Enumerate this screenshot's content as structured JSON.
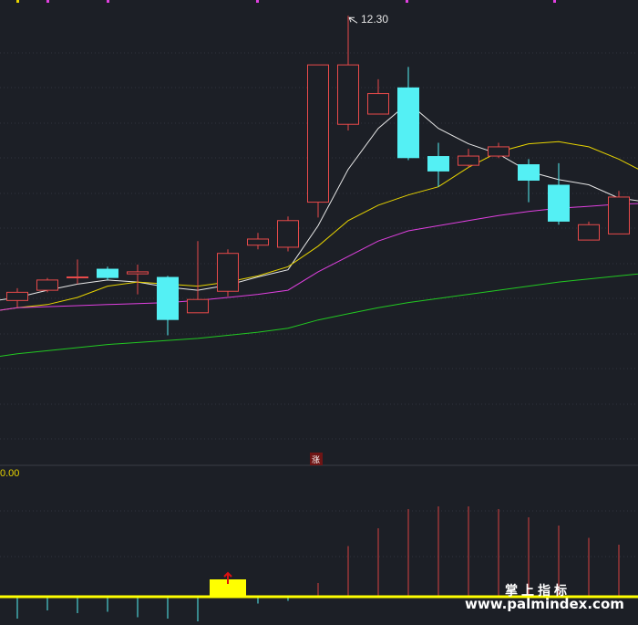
{
  "chart_data": {
    "type": "candlestick",
    "title": "",
    "price_axis": {
      "ylim": [
        8.0,
        12.4
      ]
    },
    "candles": [
      {
        "open": 9.52,
        "close": 9.6,
        "high": 9.64,
        "low": 9.45
      },
      {
        "open": 9.62,
        "close": 9.72,
        "high": 9.74,
        "low": 9.6
      },
      {
        "open": 9.75,
        "close": 9.75,
        "high": 9.92,
        "low": 9.68
      },
      {
        "open": 9.83,
        "close": 9.74,
        "high": 9.85,
        "low": 9.72
      },
      {
        "open": 9.78,
        "close": 9.8,
        "high": 9.87,
        "low": 9.58
      },
      {
        "open": 9.75,
        "close": 9.33,
        "high": 9.76,
        "low": 9.18
      },
      {
        "open": 9.4,
        "close": 9.53,
        "high": 10.1,
        "low": 9.4
      },
      {
        "open": 9.61,
        "close": 9.98,
        "high": 10.02,
        "low": 9.56
      },
      {
        "open": 10.06,
        "close": 10.12,
        "high": 10.18,
        "low": 10.02
      },
      {
        "open": 10.04,
        "close": 10.3,
        "high": 10.34,
        "low": 10.0
      },
      {
        "open": 10.48,
        "close": 11.82,
        "high": 11.82,
        "low": 10.33
      },
      {
        "open": 11.24,
        "close": 11.82,
        "high": 12.3,
        "low": 11.18
      },
      {
        "open": 11.34,
        "close": 11.54,
        "high": 11.68,
        "low": 11.34
      },
      {
        "open": 11.6,
        "close": 10.91,
        "high": 11.8,
        "low": 10.89
      },
      {
        "open": 10.93,
        "close": 10.78,
        "high": 11.06,
        "low": 10.63
      },
      {
        "open": 10.84,
        "close": 10.93,
        "high": 11.0,
        "low": 10.82
      },
      {
        "open": 10.93,
        "close": 11.02,
        "high": 11.06,
        "low": 10.91
      },
      {
        "open": 10.85,
        "close": 10.69,
        "high": 10.9,
        "low": 10.48
      },
      {
        "open": 10.65,
        "close": 10.29,
        "high": 10.86,
        "low": 10.26
      },
      {
        "open": 10.11,
        "close": 10.26,
        "high": 10.29,
        "low": 10.11
      },
      {
        "open": 10.17,
        "close": 10.53,
        "high": 10.59,
        "low": 10.17
      },
      {
        "open": 10.61,
        "close": 10.03,
        "high": 10.61,
        "low": 9.93
      }
    ],
    "moving_averages": [
      {
        "color": "#e8e8e8",
        "values": [
          9.55,
          9.62,
          9.68,
          9.72,
          9.7,
          9.65,
          9.62,
          9.67,
          9.75,
          9.82,
          10.25,
          10.8,
          11.2,
          11.45,
          11.2,
          11.05,
          10.95,
          10.78,
          10.7,
          10.65,
          10.52,
          10.48
        ]
      },
      {
        "color": "#e8d400",
        "values": [
          9.45,
          9.48,
          9.55,
          9.66,
          9.7,
          9.68,
          9.66,
          9.7,
          9.76,
          9.85,
          10.05,
          10.3,
          10.45,
          10.55,
          10.63,
          10.82,
          10.97,
          11.05,
          11.07,
          11.02,
          10.9,
          10.75
        ]
      },
      {
        "color": "#e040e0",
        "values": [
          9.45,
          9.46,
          9.47,
          9.48,
          9.49,
          9.5,
          9.52,
          9.55,
          9.58,
          9.62,
          9.8,
          9.95,
          10.1,
          10.2,
          10.25,
          10.3,
          10.35,
          10.39,
          10.42,
          10.44,
          10.46,
          10.47
        ]
      },
      {
        "color": "#22c822",
        "values": [
          9.0,
          9.03,
          9.06,
          9.09,
          9.11,
          9.13,
          9.15,
          9.18,
          9.21,
          9.25,
          9.33,
          9.39,
          9.45,
          9.5,
          9.54,
          9.58,
          9.62,
          9.66,
          9.7,
          9.73,
          9.76,
          9.79
        ]
      }
    ],
    "annotations": {
      "high_label": "12.30",
      "bottom_badge": "涨",
      "sub_axis_label": "0.00"
    },
    "indicator": {
      "values": [
        -0.8,
        -0.5,
        -0.6,
        -0.55,
        -0.75,
        -0.8,
        -0.9,
        0.8,
        -0.25,
        -0.15,
        0.5,
        1.85,
        2.5,
        3.2,
        3.3,
        3.3,
        3.2,
        2.9,
        2.6,
        2.15,
        1.9,
        1.85
      ],
      "ylim": [
        -1.0,
        3.8
      ],
      "signal_index": 7,
      "signal_color": "#ffff00"
    }
  },
  "watermark": {
    "cn": "掌上指标",
    "url": "www.palmindex.com"
  }
}
